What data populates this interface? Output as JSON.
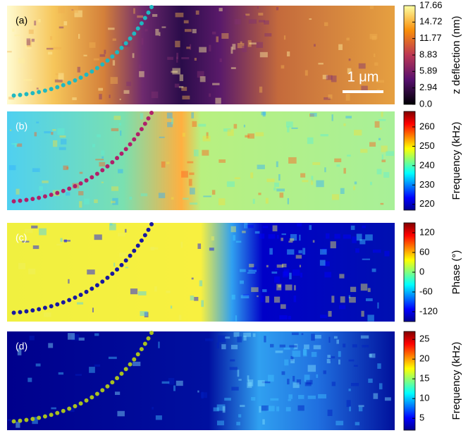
{
  "panels": [
    {
      "label": "(a)",
      "scale_bar": "1 μm",
      "colorbar": {
        "label": "z deflection (nm)",
        "lim": [
          0,
          17.66
        ],
        "ticks": [
          17.66,
          14.72,
          11.77,
          8.83,
          5.89,
          2.94,
          {
            "value": 0,
            "label": "0.0"
          }
        ]
      }
    },
    {
      "label": "(b)",
      "colorbar": {
        "label": "Frequency (kHz)",
        "lim": [
          217,
          268
        ],
        "ticks": [
          260,
          250,
          240,
          230,
          220
        ]
      }
    },
    {
      "label": "(c)",
      "colorbar": {
        "label": "Phase (°)",
        "lim": [
          -150,
          150
        ],
        "ticks": [
          120,
          60,
          0,
          -60,
          -120
        ]
      }
    },
    {
      "label": "(d)",
      "colorbar": {
        "label": "Frequency (kHz)",
        "lim": [
          2,
          27
        ],
        "ticks": [
          25,
          20,
          15,
          10,
          5
        ]
      }
    }
  ]
}
